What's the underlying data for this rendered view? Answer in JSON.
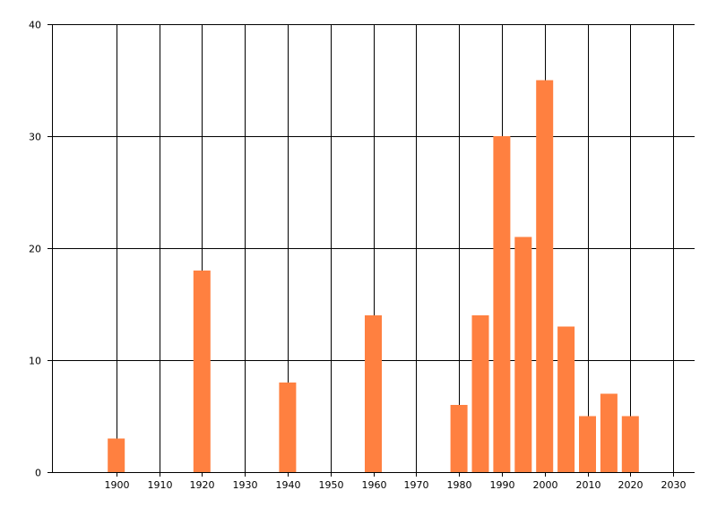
{
  "chart_data": {
    "type": "bar",
    "title": "",
    "xlabel": "",
    "ylabel": "",
    "x": [
      1900,
      1920,
      1940,
      1960,
      1980,
      1985,
      1990,
      1995,
      2000,
      2005,
      2010,
      2015,
      2020
    ],
    "values": [
      3,
      18,
      8,
      14,
      6,
      14,
      30,
      21,
      35,
      13,
      5,
      7,
      5
    ],
    "xlim": [
      1885,
      2035
    ],
    "ylim": [
      0,
      40
    ],
    "x_ticks": [
      1900,
      1910,
      1920,
      1930,
      1940,
      1950,
      1960,
      1970,
      1980,
      1990,
      2000,
      2010,
      2020,
      2030
    ],
    "y_ticks": [
      0,
      10,
      20,
      30,
      40
    ],
    "grid": true,
    "legend": "none",
    "bar_color": "#FF8040",
    "grid_color": "#000000"
  }
}
